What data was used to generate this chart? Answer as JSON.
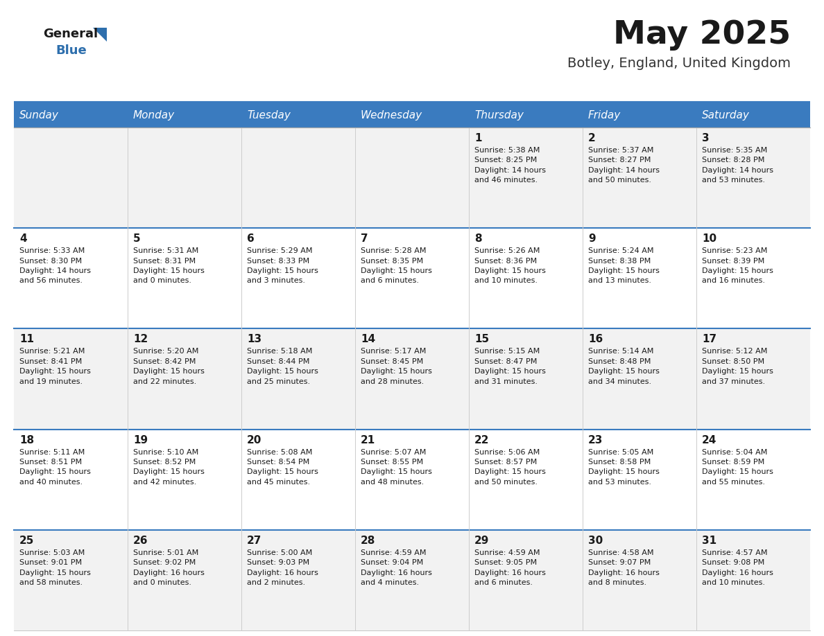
{
  "title": "May 2025",
  "subtitle": "Botley, England, United Kingdom",
  "days_of_week": [
    "Sunday",
    "Monday",
    "Tuesday",
    "Wednesday",
    "Thursday",
    "Friday",
    "Saturday"
  ],
  "header_color": "#3a7bbf",
  "header_text_color": "#ffffff",
  "row_colors": [
    "#f2f2f2",
    "#ffffff",
    "#f2f2f2",
    "#ffffff",
    "#f2f2f2"
  ],
  "day_number_color": "#1a1a1a",
  "cell_text_color": "#1a1a1a",
  "title_color": "#1a1a1a",
  "subtitle_color": "#333333",
  "logo_general_color": "#1a1a1a",
  "logo_blue_color": "#2e6fad",
  "separator_color": "#3a7bbf",
  "grid_color": "#cccccc",
  "weeks": [
    [
      {
        "day": null,
        "text": ""
      },
      {
        "day": null,
        "text": ""
      },
      {
        "day": null,
        "text": ""
      },
      {
        "day": null,
        "text": ""
      },
      {
        "day": 1,
        "text": "Sunrise: 5:38 AM\nSunset: 8:25 PM\nDaylight: 14 hours\nand 46 minutes."
      },
      {
        "day": 2,
        "text": "Sunrise: 5:37 AM\nSunset: 8:27 PM\nDaylight: 14 hours\nand 50 minutes."
      },
      {
        "day": 3,
        "text": "Sunrise: 5:35 AM\nSunset: 8:28 PM\nDaylight: 14 hours\nand 53 minutes."
      }
    ],
    [
      {
        "day": 4,
        "text": "Sunrise: 5:33 AM\nSunset: 8:30 PM\nDaylight: 14 hours\nand 56 minutes."
      },
      {
        "day": 5,
        "text": "Sunrise: 5:31 AM\nSunset: 8:31 PM\nDaylight: 15 hours\nand 0 minutes."
      },
      {
        "day": 6,
        "text": "Sunrise: 5:29 AM\nSunset: 8:33 PM\nDaylight: 15 hours\nand 3 minutes."
      },
      {
        "day": 7,
        "text": "Sunrise: 5:28 AM\nSunset: 8:35 PM\nDaylight: 15 hours\nand 6 minutes."
      },
      {
        "day": 8,
        "text": "Sunrise: 5:26 AM\nSunset: 8:36 PM\nDaylight: 15 hours\nand 10 minutes."
      },
      {
        "day": 9,
        "text": "Sunrise: 5:24 AM\nSunset: 8:38 PM\nDaylight: 15 hours\nand 13 minutes."
      },
      {
        "day": 10,
        "text": "Sunrise: 5:23 AM\nSunset: 8:39 PM\nDaylight: 15 hours\nand 16 minutes."
      }
    ],
    [
      {
        "day": 11,
        "text": "Sunrise: 5:21 AM\nSunset: 8:41 PM\nDaylight: 15 hours\nand 19 minutes."
      },
      {
        "day": 12,
        "text": "Sunrise: 5:20 AM\nSunset: 8:42 PM\nDaylight: 15 hours\nand 22 minutes."
      },
      {
        "day": 13,
        "text": "Sunrise: 5:18 AM\nSunset: 8:44 PM\nDaylight: 15 hours\nand 25 minutes."
      },
      {
        "day": 14,
        "text": "Sunrise: 5:17 AM\nSunset: 8:45 PM\nDaylight: 15 hours\nand 28 minutes."
      },
      {
        "day": 15,
        "text": "Sunrise: 5:15 AM\nSunset: 8:47 PM\nDaylight: 15 hours\nand 31 minutes."
      },
      {
        "day": 16,
        "text": "Sunrise: 5:14 AM\nSunset: 8:48 PM\nDaylight: 15 hours\nand 34 minutes."
      },
      {
        "day": 17,
        "text": "Sunrise: 5:12 AM\nSunset: 8:50 PM\nDaylight: 15 hours\nand 37 minutes."
      }
    ],
    [
      {
        "day": 18,
        "text": "Sunrise: 5:11 AM\nSunset: 8:51 PM\nDaylight: 15 hours\nand 40 minutes."
      },
      {
        "day": 19,
        "text": "Sunrise: 5:10 AM\nSunset: 8:52 PM\nDaylight: 15 hours\nand 42 minutes."
      },
      {
        "day": 20,
        "text": "Sunrise: 5:08 AM\nSunset: 8:54 PM\nDaylight: 15 hours\nand 45 minutes."
      },
      {
        "day": 21,
        "text": "Sunrise: 5:07 AM\nSunset: 8:55 PM\nDaylight: 15 hours\nand 48 minutes."
      },
      {
        "day": 22,
        "text": "Sunrise: 5:06 AM\nSunset: 8:57 PM\nDaylight: 15 hours\nand 50 minutes."
      },
      {
        "day": 23,
        "text": "Sunrise: 5:05 AM\nSunset: 8:58 PM\nDaylight: 15 hours\nand 53 minutes."
      },
      {
        "day": 24,
        "text": "Sunrise: 5:04 AM\nSunset: 8:59 PM\nDaylight: 15 hours\nand 55 minutes."
      }
    ],
    [
      {
        "day": 25,
        "text": "Sunrise: 5:03 AM\nSunset: 9:01 PM\nDaylight: 15 hours\nand 58 minutes."
      },
      {
        "day": 26,
        "text": "Sunrise: 5:01 AM\nSunset: 9:02 PM\nDaylight: 16 hours\nand 0 minutes."
      },
      {
        "day": 27,
        "text": "Sunrise: 5:00 AM\nSunset: 9:03 PM\nDaylight: 16 hours\nand 2 minutes."
      },
      {
        "day": 28,
        "text": "Sunrise: 4:59 AM\nSunset: 9:04 PM\nDaylight: 16 hours\nand 4 minutes."
      },
      {
        "day": 29,
        "text": "Sunrise: 4:59 AM\nSunset: 9:05 PM\nDaylight: 16 hours\nand 6 minutes."
      },
      {
        "day": 30,
        "text": "Sunrise: 4:58 AM\nSunset: 9:07 PM\nDaylight: 16 hours\nand 8 minutes."
      },
      {
        "day": 31,
        "text": "Sunrise: 4:57 AM\nSunset: 9:08 PM\nDaylight: 16 hours\nand 10 minutes."
      }
    ]
  ]
}
